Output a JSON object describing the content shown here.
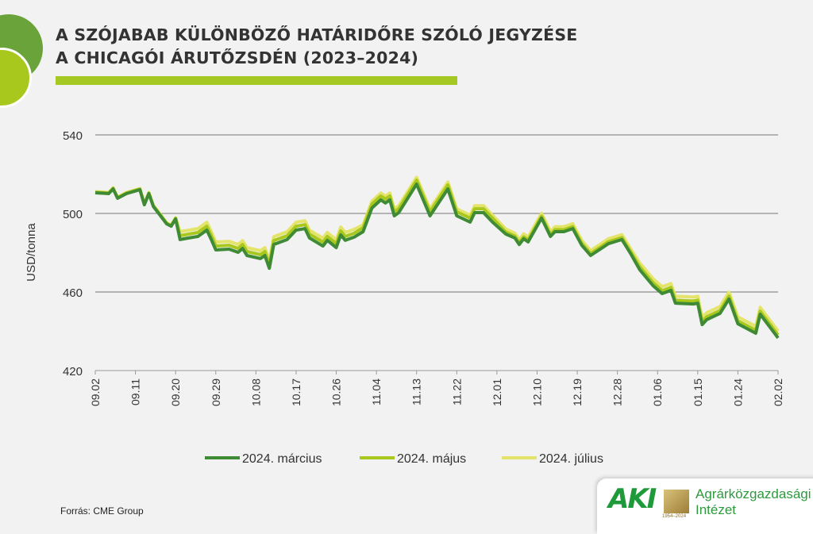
{
  "header": {
    "title_line1": "A SZÓJABAB KÜLÖNBÖZŐ HATÁRIDŐRE SZÓLÓ JEGYZÉSE",
    "title_line2": "A CHICAGÓI ÁRUTŐZSDÉN (2023–2024)"
  },
  "footer": {
    "source": "Forrás: CME Group",
    "logo_text": "AKI",
    "logo_years": "1954–2024",
    "institute_line1": "Agrárközgazdasági",
    "institute_line2": "Intézet"
  },
  "chart_data": {
    "type": "line",
    "title": "A SZÓJABAB KÜLÖNBÖZŐ HATÁRIDŐRE SZÓLÓ JEGYZÉSE A CHICAGÓI ÁRUTŐZSDÉN (2023–2024)",
    "xlabel": "",
    "ylabel": "USD/tonna",
    "ylim": [
      420,
      540
    ],
    "yticks": [
      "420",
      "460",
      "500",
      "540"
    ],
    "xticks": [
      "09.02",
      "09.11",
      "09.20",
      "09.29",
      "10.08",
      "10.17",
      "10.26",
      "11.04",
      "11.13",
      "11.22",
      "12.01",
      "12.10",
      "12.19",
      "12.28",
      "01.06",
      "01.15",
      "01.24",
      "02.02"
    ],
    "grid": "horizontal",
    "legend": "bottom",
    "x": [
      "09.02",
      "09.05",
      "09.06",
      "09.07",
      "09.09",
      "09.12",
      "09.13",
      "09.14",
      "09.15",
      "09.18",
      "09.19",
      "09.20",
      "09.21",
      "09.23",
      "09.25",
      "09.27",
      "09.28",
      "09.29",
      "10.02",
      "10.04",
      "10.05",
      "10.06",
      "10.09",
      "10.10",
      "10.11",
      "10.12",
      "10.15",
      "10.17",
      "10.19",
      "10.20",
      "10.23",
      "10.24",
      "10.26",
      "10.27",
      "10.28",
      "10.30",
      "11.01",
      "11.03",
      "11.05",
      "11.06",
      "11.07",
      "11.08",
      "11.09",
      "11.13",
      "11.16",
      "11.20",
      "11.22",
      "11.25",
      "11.26",
      "11.28",
      "11.30",
      "12.03",
      "12.05",
      "12.06",
      "12.07",
      "12.08",
      "12.11",
      "12.13",
      "12.14",
      "12.16",
      "12.18",
      "12.20",
      "12.22",
      "12.26",
      "12.29",
      "12.31",
      "01.02",
      "01.05",
      "01.07",
      "01.09",
      "01.10",
      "01.14",
      "01.15",
      "01.16",
      "01.17",
      "01.20",
      "01.22",
      "01.24",
      "01.28",
      "01.29",
      "02.02"
    ],
    "series": [
      {
        "name": "2024. március",
        "color": "#3f8a35",
        "values": [
          510.5,
          510.1,
          512.5,
          507.7,
          510.1,
          512.1,
          504.4,
          510.1,
          503.6,
          494.7,
          493.5,
          497.2,
          486.7,
          487.5,
          488.3,
          491.5,
          486.7,
          481.4,
          481.8,
          480.2,
          482.2,
          478.6,
          477.0,
          478.6,
          472.1,
          484.2,
          486.7,
          491.5,
          492.3,
          487.5,
          483.4,
          486.3,
          482.6,
          489.1,
          486.3,
          487.9,
          490.7,
          502.8,
          506.9,
          505.3,
          506.9,
          498.8,
          500.4,
          514.9,
          498.8,
          512.5,
          498.8,
          495.6,
          500.4,
          500.4,
          495.6,
          489.5,
          487.5,
          484.2,
          487.1,
          485.5,
          497.6,
          488.3,
          490.7,
          490.7,
          492.3,
          483.8,
          478.6,
          484.6,
          486.7,
          479.4,
          471.3,
          463.2,
          459.2,
          460.8,
          454.3,
          453.9,
          454.3,
          443.4,
          445.9,
          449.1,
          456.4,
          443.8,
          439.0,
          448.7,
          436.6
        ]
      },
      {
        "name": "2024. május",
        "color": "#a8c81e",
        "values": [
          510.8,
          510.4,
          512.8,
          508.0,
          510.4,
          512.4,
          504.7,
          510.4,
          503.9,
          495.0,
          493.8,
          497.5,
          488.7,
          489.5,
          490.3,
          493.5,
          488.7,
          483.4,
          483.8,
          482.2,
          484.2,
          480.6,
          479.0,
          480.6,
          474.1,
          486.2,
          488.7,
          493.5,
          494.3,
          489.5,
          485.4,
          488.3,
          484.6,
          491.1,
          488.3,
          489.9,
          492.7,
          504.8,
          508.9,
          507.3,
          508.9,
          500.8,
          502.4,
          516.9,
          500.8,
          514.5,
          500.8,
          497.6,
          502.4,
          502.4,
          497.6,
          490.5,
          488.5,
          485.2,
          488.1,
          486.5,
          498.6,
          489.3,
          491.7,
          491.7,
          493.3,
          484.8,
          479.6,
          485.6,
          487.7,
          480.4,
          472.8,
          464.7,
          460.7,
          462.3,
          455.8,
          455.4,
          455.8,
          444.9,
          447.4,
          450.6,
          457.9,
          445.3,
          440.5,
          450.2,
          438.1
        ]
      },
      {
        "name": "2024. július",
        "color": "#e4e46a",
        "values": [
          511.1,
          510.7,
          513.1,
          508.3,
          510.7,
          512.7,
          505.0,
          510.7,
          504.2,
          495.3,
          494.1,
          497.8,
          490.7,
          491.5,
          492.3,
          495.5,
          490.7,
          485.4,
          485.8,
          484.2,
          486.2,
          482.6,
          481.0,
          482.6,
          476.1,
          488.2,
          490.7,
          495.5,
          496.3,
          491.5,
          487.4,
          490.3,
          486.6,
          493.1,
          490.3,
          491.9,
          494.2,
          506.3,
          510.4,
          508.8,
          510.4,
          502.3,
          503.9,
          518.4,
          502.3,
          516.0,
          502.3,
          499.1,
          503.9,
          503.9,
          499.1,
          492.0,
          490.0,
          486.7,
          489.6,
          488.0,
          500.1,
          490.8,
          493.2,
          493.2,
          494.8,
          486.3,
          481.1,
          487.1,
          489.2,
          481.9,
          474.8,
          466.7,
          462.7,
          464.3,
          457.8,
          457.4,
          457.8,
          446.9,
          449.4,
          452.6,
          459.9,
          447.3,
          442.5,
          452.2,
          440.1
        ]
      }
    ]
  }
}
